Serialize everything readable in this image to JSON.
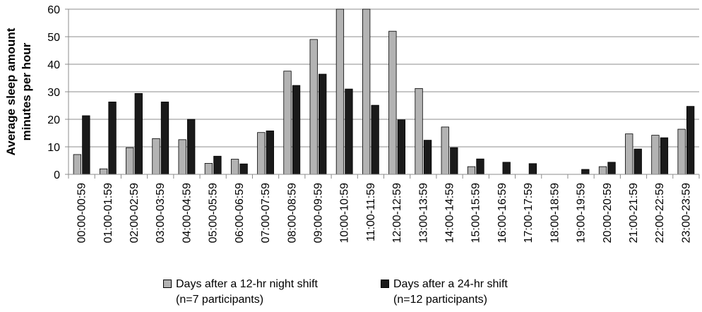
{
  "chart_data": {
    "type": "bar",
    "title": "",
    "ylabel_line1": "Average sleep amount",
    "ylabel_line2": "minutes per hour",
    "xlabel": "",
    "ylim": [
      0,
      60
    ],
    "yticks": [
      0,
      10,
      20,
      30,
      40,
      50,
      60
    ],
    "grid": "horizontal",
    "legend_position": "bottom",
    "categories": [
      "00:00-00:59",
      "01:00-01:59",
      "02:00-02:59",
      "03:00-03:59",
      "04:00-04:59",
      "05:00-05:59",
      "06:00-06:59",
      "07:00-07:59",
      "08:00-08:59",
      "09:00-09:59",
      "10:00-10:59",
      "11:00-11:59",
      "12:00-12:59",
      "13:00-13:59",
      "14:00-14:59",
      "15:00-15:59",
      "16:00-16:59",
      "17:00-17:59",
      "18:00-18:59",
      "19:00-19:59",
      "20:00-20:59",
      "21:00-21:59",
      "22:00-22:59",
      "23:00-23:59"
    ],
    "series": [
      {
        "name": "Days after a 12-hr night shift",
        "name_line2": "(n=7 participants)",
        "color": "#b3b3b3",
        "values": [
          7.2,
          2.0,
          9.7,
          13.0,
          12.6,
          4.0,
          5.5,
          15.2,
          37.5,
          49.0,
          60.0,
          60.0,
          52.0,
          31.2,
          17.2,
          2.8,
          0.0,
          0.0,
          0.0,
          0.0,
          2.8,
          14.7,
          14.2,
          16.4
        ]
      },
      {
        "name": "Days after a 24-hr shift",
        "name_line2": "(n=12 participants)",
        "color": "#1a1a1a",
        "values": [
          21.3,
          26.3,
          29.4,
          26.3,
          20.0,
          6.6,
          3.8,
          15.8,
          32.3,
          36.4,
          31.0,
          25.1,
          19.8,
          12.4,
          9.7,
          5.6,
          4.4,
          3.9,
          0.0,
          1.8,
          4.4,
          9.2,
          13.3,
          24.7
        ]
      }
    ]
  }
}
